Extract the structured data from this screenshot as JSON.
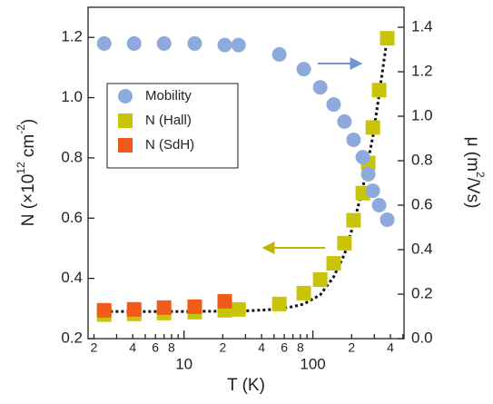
{
  "chart_data": {
    "type": "scatter",
    "xlabel": "T (K)",
    "ylabel": [
      "N (×10",
      "12",
      " cm",
      "-2",
      ")"
    ],
    "y2label": [
      "μ (m",
      "2",
      "/Vs)"
    ],
    "xscale": "log",
    "xlim": [
      1.8,
      510
    ],
    "xticks": [
      2,
      4,
      6,
      8,
      10,
      {
        "value": 20,
        "label": "2"
      },
      {
        "value": 40,
        "label": "4"
      },
      {
        "value": 60,
        "label": "6"
      },
      {
        "value": 80,
        "label": "8"
      },
      100,
      {
        "value": 200,
        "label": "2"
      },
      {
        "value": 400,
        "label": "4"
      }
    ],
    "xminorticks": [
      3,
      5,
      7,
      9,
      30,
      50,
      70,
      90,
      300,
      500
    ],
    "ylim": [
      0.2,
      1.3
    ],
    "yticks": [
      0.2,
      0.4,
      0.6,
      0.8,
      {
        "value": 1.0,
        "label": "1.0"
      },
      1.2
    ],
    "y2lim": [
      0,
      1.49
    ],
    "y2ticks": [
      {
        "value": 0,
        "label": "0.0"
      },
      0.2,
      0.4,
      0.6,
      0.8,
      {
        "value": 1.0,
        "label": "1.0"
      },
      1.2,
      1.4
    ],
    "legend": "upper left",
    "series": [
      {
        "name": "Mobility",
        "color": "#8ea9db",
        "marker": "circle",
        "axis": "y2",
        "x": [
          2.4,
          4.1,
          7.0,
          12.1,
          20.7,
          26.5,
          54.9,
          85,
          114,
          145,
          176,
          207,
          244,
          269,
          292,
          327,
          378
        ],
        "values": [
          1.327,
          1.327,
          1.327,
          1.327,
          1.32,
          1.32,
          1.278,
          1.212,
          1.13,
          1.053,
          0.976,
          0.894,
          0.816,
          0.739,
          0.665,
          0.6,
          0.535
        ]
      },
      {
        "name": "N (Hall)",
        "color": "#c8c40a",
        "marker": "square",
        "x": [
          2.4,
          4.1,
          7.0,
          12.1,
          20.7,
          26.5,
          54.9,
          85,
          114,
          145,
          176,
          207,
          244,
          269,
          292,
          327,
          378
        ],
        "values": [
          0.28,
          0.282,
          0.285,
          0.288,
          0.294,
          0.297,
          0.315,
          0.351,
          0.396,
          0.45,
          0.517,
          0.593,
          0.683,
          0.783,
          0.901,
          1.025,
          1.197
        ]
      },
      {
        "name": "N (SdH)",
        "color": "#f25a1a",
        "marker": "square",
        "x": [
          2.4,
          4.1,
          7.0,
          12.1,
          20.7
        ],
        "values": [
          0.294,
          0.297,
          0.303,
          0.306,
          0.324
        ]
      }
    ],
    "fit": {
      "color": "#111",
      "x": [
        2.2,
        10,
        30,
        50,
        70,
        85,
        114,
        145,
        176,
        207,
        244,
        292,
        327,
        378
      ],
      "values": [
        0.29,
        0.29,
        0.292,
        0.297,
        0.306,
        0.315,
        0.345,
        0.405,
        0.48,
        0.58,
        0.7,
        0.87,
        1.01,
        1.2
      ]
    }
  }
}
